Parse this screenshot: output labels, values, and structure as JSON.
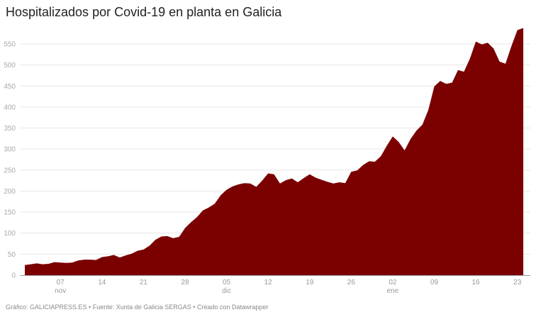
{
  "title": "Hospitalizados por Covid-19 en planta en Galicia",
  "footer": "Gráfico: GALICIAPRESS.ES • Fuente: Xunta de Galicia SERGAS • Creado con Datawrapper",
  "colors": {
    "area": "#7b0000",
    "grid": "#e6e6e6",
    "baseline": "#999999"
  },
  "chart_data": {
    "type": "area",
    "title": "Hospitalizados por Covid-19 en planta en Galicia",
    "xlabel": "",
    "ylabel": "",
    "ylim": [
      0,
      550
    ],
    "yticks": [
      0,
      50,
      100,
      150,
      200,
      250,
      300,
      350,
      400,
      450,
      500,
      550
    ],
    "grid": true,
    "legend": "none",
    "x_start": "2020-11-01",
    "x_end": "2021-01-24",
    "xticks": [
      {
        "label": "07",
        "sub": "nov",
        "day": 6
      },
      {
        "label": "14",
        "sub": "",
        "day": 13
      },
      {
        "label": "21",
        "sub": "",
        "day": 20
      },
      {
        "label": "28",
        "sub": "",
        "day": 27
      },
      {
        "label": "05",
        "sub": "dic",
        "day": 34
      },
      {
        "label": "12",
        "sub": "",
        "day": 41
      },
      {
        "label": "19",
        "sub": "",
        "day": 48
      },
      {
        "label": "26",
        "sub": "",
        "day": 55
      },
      {
        "label": "02",
        "sub": "ene",
        "day": 62
      },
      {
        "label": "09",
        "sub": "",
        "day": 69
      },
      {
        "label": "16",
        "sub": "",
        "day": 76
      },
      {
        "label": "23",
        "sub": "",
        "day": 83
      }
    ],
    "values": [
      24,
      26,
      28,
      26,
      27,
      31,
      30,
      29,
      30,
      35,
      37,
      37,
      36,
      43,
      45,
      48,
      42,
      47,
      51,
      58,
      61,
      70,
      84,
      92,
      93,
      88,
      91,
      112,
      126,
      138,
      154,
      161,
      170,
      190,
      203,
      211,
      216,
      219,
      218,
      210,
      225,
      242,
      240,
      218,
      226,
      230,
      221,
      231,
      240,
      232,
      227,
      222,
      218,
      221,
      219,
      246,
      249,
      262,
      271,
      270,
      283,
      308,
      330,
      317,
      297,
      324,
      344,
      358,
      393,
      449,
      462,
      455,
      458,
      488,
      484,
      515,
      556,
      549,
      553,
      539,
      508,
      503,
      545,
      583,
      588
    ]
  }
}
